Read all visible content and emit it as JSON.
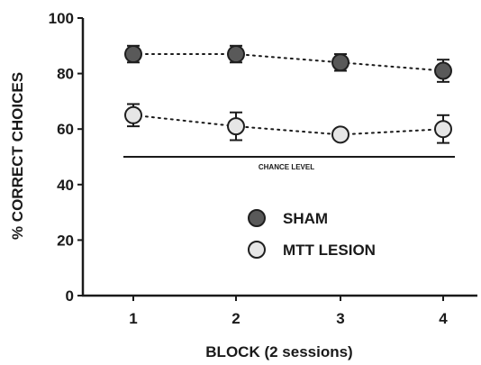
{
  "chart_data": {
    "type": "scatter",
    "xlabel": "BLOCK (2 sessions)",
    "ylabel": "% CORRECT CHOICES",
    "categories": [
      "1",
      "2",
      "3",
      "4"
    ],
    "x": [
      1,
      2,
      3,
      4
    ],
    "xlim": [
      0.5,
      4.5
    ],
    "ylim": [
      0,
      100
    ],
    "yticks": [
      0,
      20,
      40,
      60,
      80,
      100
    ],
    "grid": false,
    "legend_position": "center-right",
    "chance_level": {
      "value": 50,
      "label": "CHANCE LEVEL"
    },
    "series": [
      {
        "name": "SHAM",
        "values": [
          87,
          87,
          84,
          81
        ],
        "error": [
          3,
          3,
          3,
          4
        ],
        "marker_fill": "#595959",
        "marker_stroke": "#1f1f1f"
      },
      {
        "name": "MTT LESION",
        "values": [
          65,
          61,
          58,
          60
        ],
        "error": [
          4,
          5,
          2,
          5
        ],
        "marker_fill": "#e6e6e6",
        "marker_stroke": "#1f1f1f"
      }
    ],
    "colors": {
      "axis": "#1a1a1a",
      "connector": "#1a1a1a"
    }
  }
}
